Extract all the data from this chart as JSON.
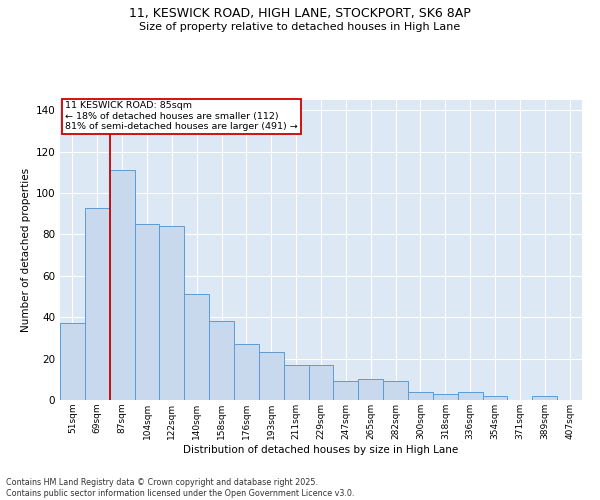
{
  "title_line1": "11, KESWICK ROAD, HIGH LANE, STOCKPORT, SK6 8AP",
  "title_line2": "Size of property relative to detached houses in High Lane",
  "xlabel": "Distribution of detached houses by size in High Lane",
  "ylabel": "Number of detached properties",
  "categories": [
    "51sqm",
    "69sqm",
    "87sqm",
    "104sqm",
    "122sqm",
    "140sqm",
    "158sqm",
    "176sqm",
    "193sqm",
    "211sqm",
    "229sqm",
    "247sqm",
    "265sqm",
    "282sqm",
    "300sqm",
    "318sqm",
    "336sqm",
    "354sqm",
    "371sqm",
    "389sqm",
    "407sqm"
  ],
  "values": [
    37,
    93,
    111,
    85,
    84,
    51,
    38,
    27,
    23,
    17,
    17,
    9,
    10,
    9,
    4,
    3,
    4,
    2,
    0,
    2,
    0
  ],
  "bar_color": "#c9d9ed",
  "bar_edge_color": "#5b9bd5",
  "vline_index": 2,
  "vline_color": "#cc0000",
  "ylim": [
    0,
    145
  ],
  "yticks": [
    0,
    20,
    40,
    60,
    80,
    100,
    120,
    140
  ],
  "annotation_title": "11 KESWICK ROAD: 85sqm",
  "annotation_line1": "← 18% of detached houses are smaller (112)",
  "annotation_line2": "81% of semi-detached houses are larger (491) →",
  "annotation_box_color": "#cc0000",
  "background_color": "#dde8f5",
  "footer_line1": "Contains HM Land Registry data © Crown copyright and database right 2025.",
  "footer_line2": "Contains public sector information licensed under the Open Government Licence v3.0."
}
